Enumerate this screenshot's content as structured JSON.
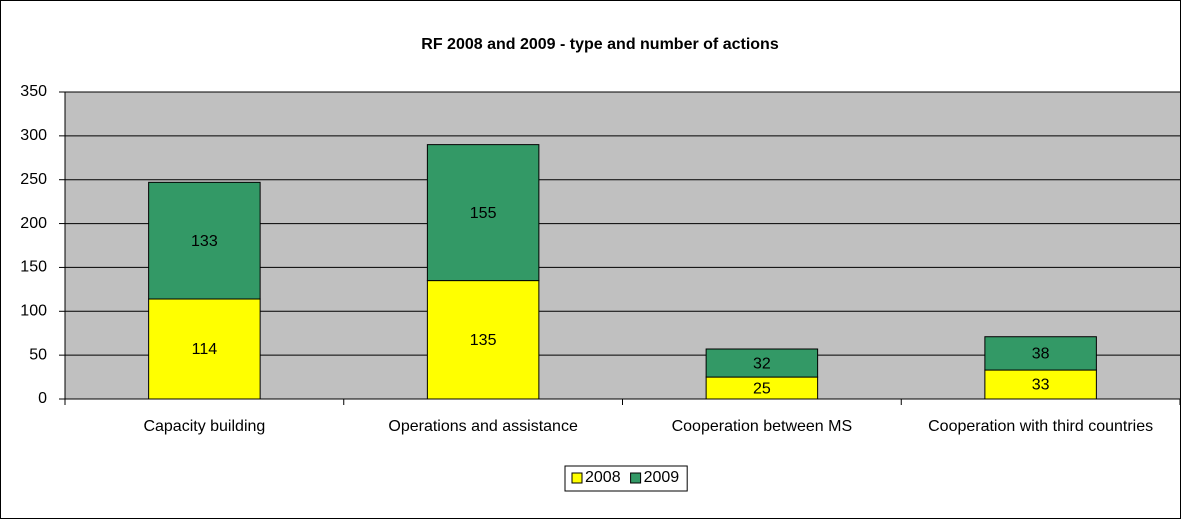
{
  "chart_data": {
    "type": "stacked_bar",
    "title": "RF 2008 and 2009 - type and number of actions",
    "categories": [
      "Capacity building",
      "Operations and assistance",
      "Cooperation between MS",
      "Cooperation with third countries"
    ],
    "series": [
      {
        "name": "2008",
        "color": "#ffff00",
        "values": [
          114,
          135,
          25,
          33
        ]
      },
      {
        "name": "2009",
        "color": "#339966",
        "values": [
          133,
          155,
          32,
          38
        ]
      }
    ],
    "ylim": [
      0,
      350
    ],
    "yticks": [
      0,
      50,
      100,
      150,
      200,
      250,
      300,
      350
    ],
    "grid": true,
    "legend": "bottom"
  }
}
